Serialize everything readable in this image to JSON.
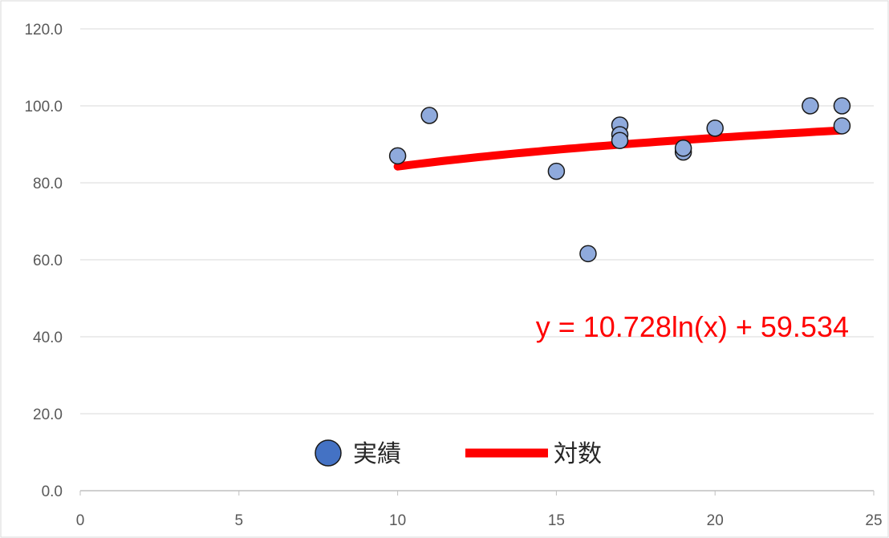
{
  "chart_data": {
    "type": "scatter",
    "title": "",
    "xlabel": "",
    "ylabel": "",
    "xlim": [
      0,
      25
    ],
    "ylim": [
      0,
      120
    ],
    "x_ticks": [
      "0",
      "5",
      "10",
      "15",
      "20",
      "25"
    ],
    "y_ticks": [
      "0.0",
      "20.0",
      "40.0",
      "60.0",
      "80.0",
      "100.0",
      "120.0"
    ],
    "grid": "horizontal",
    "legend_position": "bottom-center",
    "series": [
      {
        "name": "実績",
        "kind": "scatter",
        "color": "#8faadc",
        "legend_color": "#4472c4",
        "x": [
          10,
          11,
          15,
          16,
          17,
          17,
          17,
          19,
          19,
          20,
          23,
          24,
          24
        ],
        "y": [
          87.0,
          97.5,
          83.0,
          61.6,
          95.0,
          92.5,
          91.0,
          88.0,
          89.0,
          94.2,
          100.0,
          100.0,
          94.8
        ]
      },
      {
        "name": "対数",
        "kind": "trendline",
        "color": "#ff0000",
        "model": "log",
        "coefficients": {
          "a": 10.728,
          "b": 59.534
        },
        "x_range": [
          10,
          24
        ]
      }
    ],
    "annotations": [
      {
        "text": "y = 10.728ln(x) + 59.534",
        "color": "#ff0000"
      }
    ]
  }
}
